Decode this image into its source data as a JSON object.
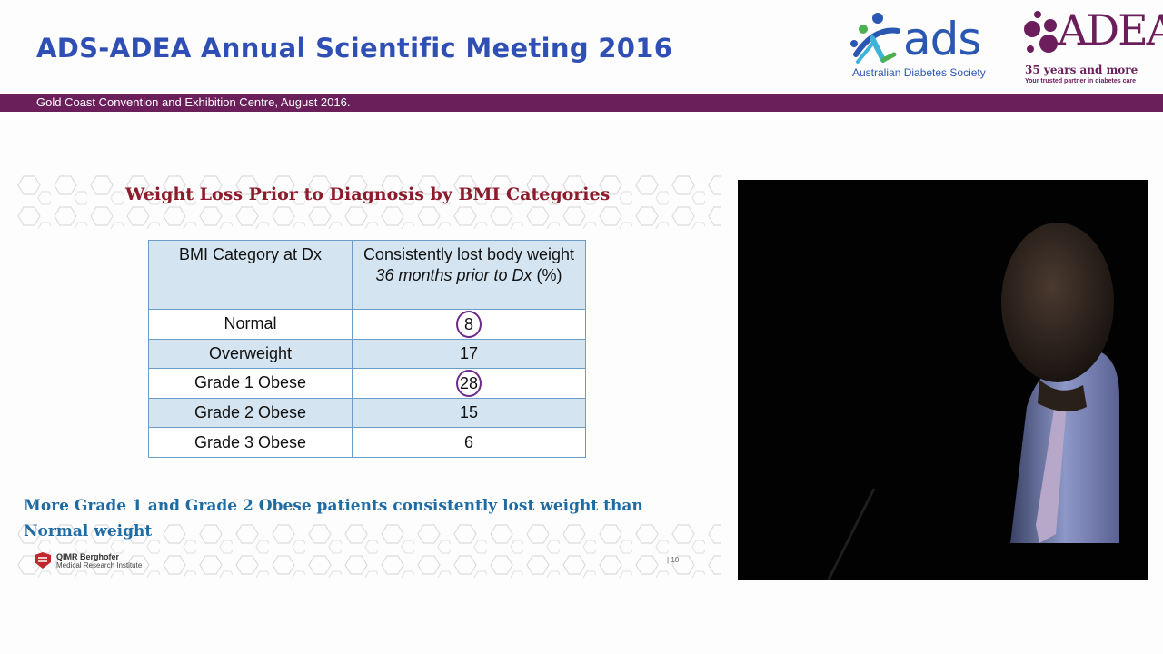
{
  "header": {
    "title": "ADS-ADEA Annual Scientific Meeting 2016",
    "venue": "Gold Coast Convention and Exhibition Centre, August 2016.",
    "ads_logo": {
      "word": "ads",
      "subtitle": "Australian Diabetes Society"
    },
    "adea_logo": {
      "word": "ADEA",
      "years": "35 years and more",
      "tagline": "Your trusted partner in diabetes care"
    }
  },
  "slide": {
    "title": "Weight Loss Prior to Diagnosis by BMI Categories",
    "table": {
      "col1_header": "BMI Category at Dx",
      "col2_header_line1": "Consistently lost body weight",
      "col2_header_italic": "36 months prior to Dx",
      "col2_header_unit": " (%)",
      "rows": [
        {
          "category": "Normal",
          "value": "8"
        },
        {
          "category": "Overweight",
          "value": "17"
        },
        {
          "category": "Grade 1 Obese",
          "value": "28"
        },
        {
          "category": "Grade 2 Obese",
          "value": "15"
        },
        {
          "category": "Grade 3 Obese",
          "value": "6"
        }
      ]
    },
    "conclusion": "More Grade 1 and Grade 2  Obese patients consistently lost weight than Normal weight",
    "institute_name": "QIMR Berghofer",
    "institute_sub": "Medical Research Institute",
    "page_number": "10"
  },
  "colors": {
    "header_title": "#2f4fb4",
    "band": "#6a1f5b",
    "slide_title": "#8c1b2c",
    "table_border": "#6c9cc8",
    "table_shade": "#d4e4f0",
    "circle": "#6e2a8c",
    "conclusion": "#1f6ca5"
  }
}
